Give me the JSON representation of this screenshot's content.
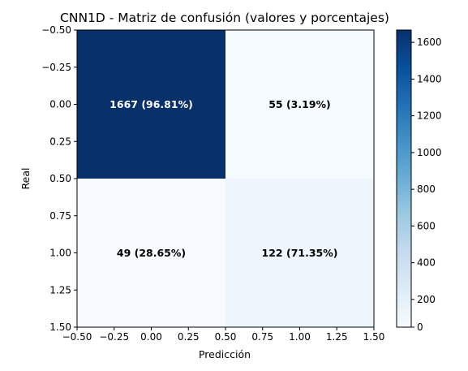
{
  "chart_data": {
    "type": "heatmap",
    "title": "CNN1D - Matriz de confusión (valores y porcentajes)",
    "xlabel": "Predicción",
    "ylabel": "Real",
    "xlim": [
      -0.5,
      1.5
    ],
    "ylim": [
      1.5,
      -0.5
    ],
    "x_ticks": [
      "−0.50",
      "−0.25",
      "0.00",
      "0.25",
      "0.50",
      "0.75",
      "1.00",
      "1.25",
      "1.50"
    ],
    "y_ticks": [
      "−0.50",
      "−0.25",
      "0.00",
      "0.25",
      "0.50",
      "0.75",
      "1.00",
      "1.25",
      "1.50"
    ],
    "matrix": [
      [
        1667,
        55
      ],
      [
        49,
        122
      ]
    ],
    "cell_labels": [
      [
        "1667 (96.81%)",
        "55 (3.19%)"
      ],
      [
        "49 (28.65%)",
        "122 (71.35%)"
      ]
    ],
    "colormap": "Blues",
    "colorbar": {
      "range": [
        49,
        1667
      ],
      "ticks": [
        0,
        200,
        400,
        600,
        800,
        1000,
        1200,
        1400,
        1600
      ],
      "tick_labels": [
        "0",
        "200",
        "400",
        "600",
        "800",
        "1000",
        "1200",
        "1400",
        "1600"
      ]
    },
    "colors": {
      "low": "#f7fbff",
      "high": "#08306b"
    }
  }
}
